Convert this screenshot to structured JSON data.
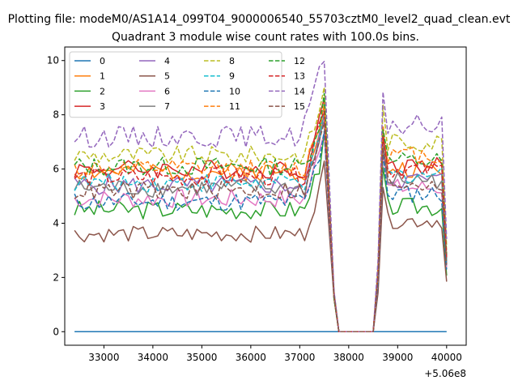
{
  "figure": {
    "suptitle": "Plotting file: modeM0/AS1A14_099T04_9000006540_55703cztM0_level2_quad_clean.evt"
  },
  "chart_data": {
    "type": "line",
    "title": "Quadrant 3 module wise count rates with 100.0s bins.",
    "xlabel": "",
    "ylabel": "",
    "x_offset_label": "+5.06e8",
    "xlim": [
      32200,
      40400
    ],
    "ylim": [
      -0.5,
      10.5
    ],
    "x_ticks": [
      33000,
      34000,
      35000,
      36000,
      37000,
      38000,
      39000,
      40000
    ],
    "x_tick_labels": [
      "33000",
      "34000",
      "35000",
      "36000",
      "37000",
      "38000",
      "39000",
      "40000"
    ],
    "y_ticks": [
      0,
      2,
      4,
      6,
      8,
      10
    ],
    "y_tick_labels": [
      "0",
      "2",
      "4",
      "6",
      "8",
      "10"
    ],
    "legend_loc": "upper-left",
    "legend_columns": 4,
    "colors": [
      "#1f77b4",
      "#ff7f0e",
      "#2ca02c",
      "#d62728",
      "#9467bd",
      "#8c564b",
      "#e377c2",
      "#7f7f7f",
      "#bcbd22",
      "#17becf"
    ],
    "segments": {
      "seg1": {
        "t0": 32400,
        "step": 100,
        "n": 52
      },
      "gap_points": [
        37800,
        37900,
        38000,
        38100,
        38200,
        38300,
        38400,
        38500
      ],
      "seg2": {
        "t0": 38600,
        "step": 100,
        "n": 15
      }
    },
    "series": [
      {
        "name": "0",
        "style": "solid",
        "base1": 0.0,
        "base2": 0.0,
        "amp": 0.0,
        "seed": 1
      },
      {
        "name": "1",
        "style": "solid",
        "base1": 5.9,
        "base2": 6.0,
        "amp": 0.35,
        "seed": 2
      },
      {
        "name": "2",
        "style": "solid",
        "base1": 4.5,
        "base2": 4.6,
        "amp": 0.35,
        "seed": 3
      },
      {
        "name": "3",
        "style": "solid",
        "base1": 6.0,
        "base2": 6.1,
        "amp": 0.35,
        "seed": 4
      },
      {
        "name": "4",
        "style": "solid",
        "base1": 5.4,
        "base2": 5.6,
        "amp": 0.35,
        "seed": 5
      },
      {
        "name": "5",
        "style": "solid",
        "base1": 3.6,
        "base2": 4.1,
        "amp": 0.3,
        "seed": 6
      },
      {
        "name": "6",
        "style": "solid",
        "base1": 4.9,
        "base2": 5.3,
        "amp": 0.35,
        "seed": 7
      },
      {
        "name": "7",
        "style": "solid",
        "base1": 5.3,
        "base2": 5.6,
        "amp": 0.35,
        "seed": 8
      },
      {
        "name": "8",
        "style": "dashed",
        "base1": 6.5,
        "base2": 7.0,
        "amp": 0.35,
        "seed": 9
      },
      {
        "name": "9",
        "style": "dashed",
        "base1": 5.5,
        "base2": 5.8,
        "amp": 0.35,
        "seed": 10
      },
      {
        "name": "10",
        "style": "dashed",
        "base1": 4.8,
        "base2": 5.1,
        "amp": 0.35,
        "seed": 11
      },
      {
        "name": "11",
        "style": "dashed",
        "base1": 6.0,
        "base2": 6.5,
        "amp": 0.35,
        "seed": 12
      },
      {
        "name": "12",
        "style": "dashed",
        "base1": 6.1,
        "base2": 6.3,
        "amp": 0.35,
        "seed": 13
      },
      {
        "name": "13",
        "style": "dashed",
        "base1": 5.7,
        "base2": 6.0,
        "amp": 0.35,
        "seed": 14
      },
      {
        "name": "14",
        "style": "dashed",
        "base1": 7.2,
        "base2": 7.6,
        "amp": 0.4,
        "seed": 15
      },
      {
        "name": "15",
        "style": "dashed",
        "base1": 5.2,
        "base2": 5.5,
        "amp": 0.35,
        "seed": 16
      }
    ]
  }
}
